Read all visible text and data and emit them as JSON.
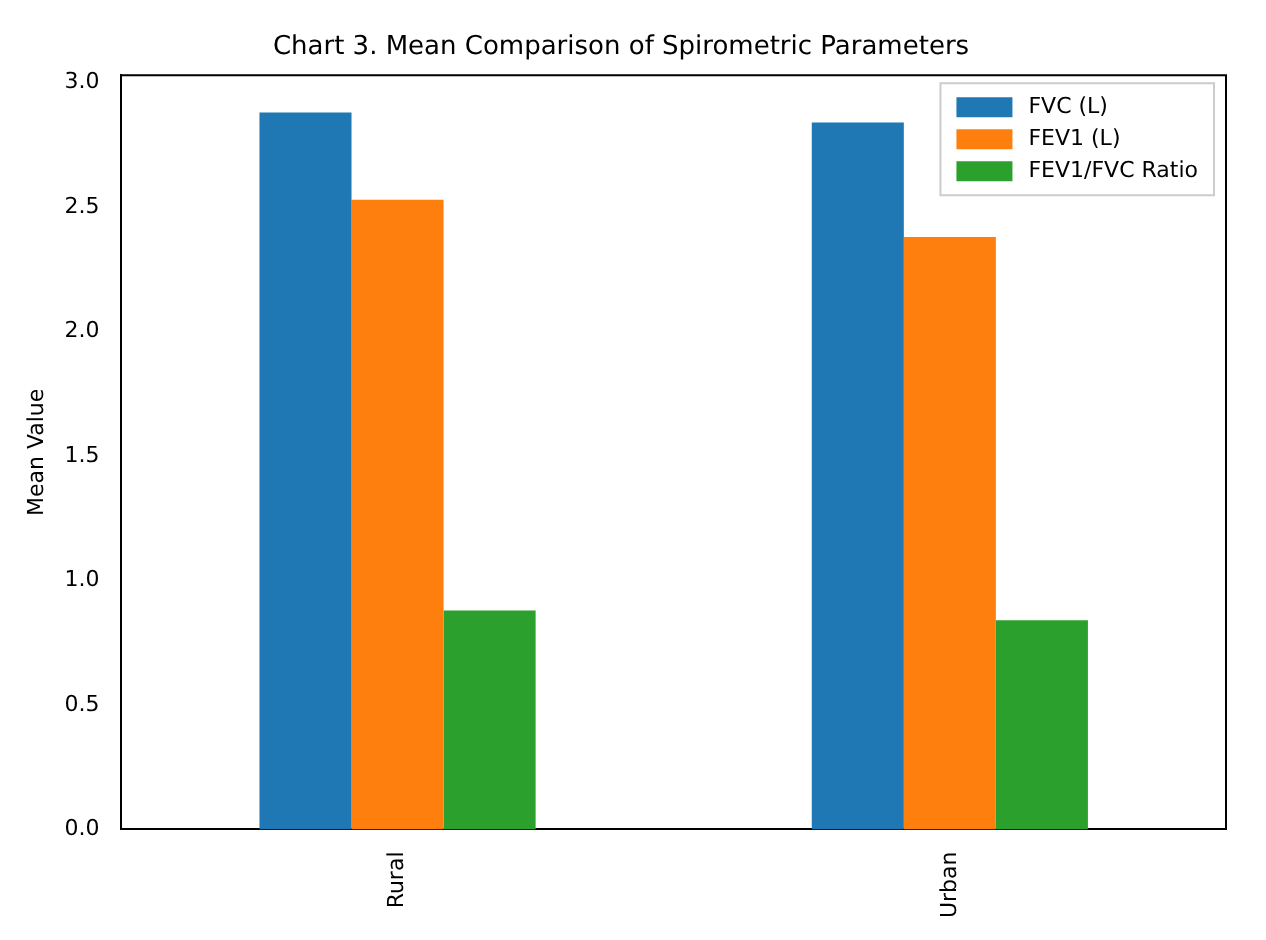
{
  "chart_data": {
    "type": "bar",
    "title": "Chart 3. Mean Comparison of Spirometric Parameters",
    "ylabel": "Mean Value",
    "categories": [
      "Rural",
      "Urban"
    ],
    "series": [
      {
        "name": "FVC (L)",
        "color": "#1f77b4",
        "values": [
          2.88,
          2.84
        ]
      },
      {
        "name": "FEV1 (L)",
        "color": "#ff7f0e",
        "values": [
          2.53,
          2.38
        ]
      },
      {
        "name": "FEV1/FVC Ratio",
        "color": "#2ca02c",
        "values": [
          0.88,
          0.84
        ]
      }
    ],
    "ylim": [
      0,
      3.03
    ],
    "yticks": [
      {
        "value": 0,
        "label": "0.0"
      },
      {
        "value": 0.5,
        "label": "0.5"
      },
      {
        "value": 1,
        "label": "1.0"
      },
      {
        "value": 1.5,
        "label": "1.5"
      },
      {
        "value": 2,
        "label": "2.0"
      },
      {
        "value": 2.5,
        "label": "2.5"
      },
      {
        "value": 3,
        "label": "3.0"
      }
    ],
    "grid": false,
    "legend": "top right"
  }
}
